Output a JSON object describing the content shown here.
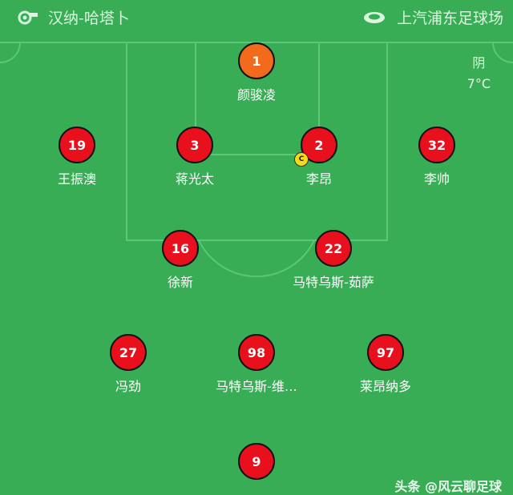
{
  "header": {
    "team": "汉纳-哈塔卜",
    "venue": "上汽浦东足球场"
  },
  "weather": {
    "condition": "阴",
    "temperature": "7°C"
  },
  "colors": {
    "pitch": "#38ad55",
    "goalkeeper": "#f26a1b",
    "outfield": "#e8101c",
    "captain_badge": "#f5dc1a"
  },
  "captain_label": "C",
  "players": [
    {
      "number": "1",
      "name": "颜骏凌",
      "role": "goalkeeper"
    },
    {
      "number": "19",
      "name": "王振澳"
    },
    {
      "number": "3",
      "name": "蒋光太"
    },
    {
      "number": "2",
      "name": "李昂",
      "captain": true
    },
    {
      "number": "32",
      "name": "李帅"
    },
    {
      "number": "16",
      "name": "徐新"
    },
    {
      "number": "22",
      "name": "马特乌斯-茹萨"
    },
    {
      "number": "27",
      "name": "冯劲"
    },
    {
      "number": "98",
      "name": "马特乌斯-维…"
    },
    {
      "number": "97",
      "name": "莱昂纳多"
    },
    {
      "number": "9",
      "name": ""
    }
  ],
  "watermark": "头条 @风云聊足球"
}
